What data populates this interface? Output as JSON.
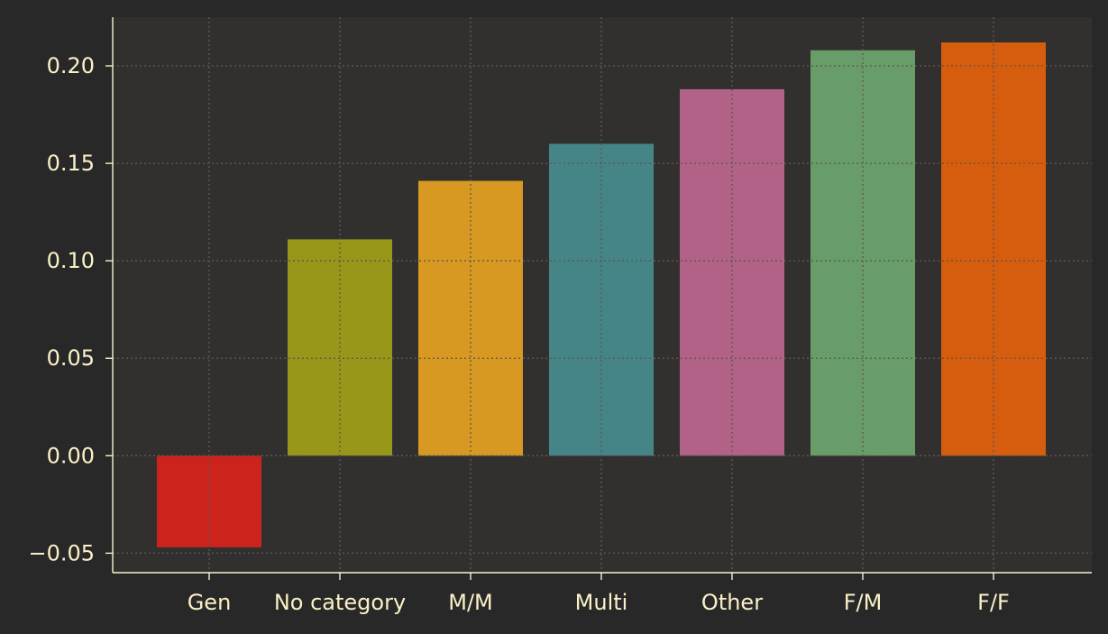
{
  "colors": {
    "page_background": "#282828",
    "plot_background": "#32302f",
    "axis": "#fbf1c7",
    "grid": "#5a5650"
  },
  "chart_data": {
    "type": "bar",
    "title": "",
    "xlabel": "",
    "ylabel": "",
    "categories": [
      "Gen",
      "No category",
      "M/M",
      "Multi",
      "Other",
      "F/M",
      "F/F"
    ],
    "values": [
      -0.047,
      0.111,
      0.141,
      0.16,
      0.188,
      0.208,
      0.212
    ],
    "bar_colors": [
      "#cc241d",
      "#98971a",
      "#d79921",
      "#458588",
      "#b16286",
      "#689d6a",
      "#d65d0e"
    ],
    "ylim": [
      -0.06,
      0.225
    ],
    "yticks": [
      -0.05,
      0.0,
      0.05,
      0.1,
      0.15,
      0.2
    ],
    "ytick_labels": [
      "−0.05",
      "0.00",
      "0.05",
      "0.10",
      "0.15",
      "0.20"
    ],
    "grid": true,
    "legend": "none"
  }
}
